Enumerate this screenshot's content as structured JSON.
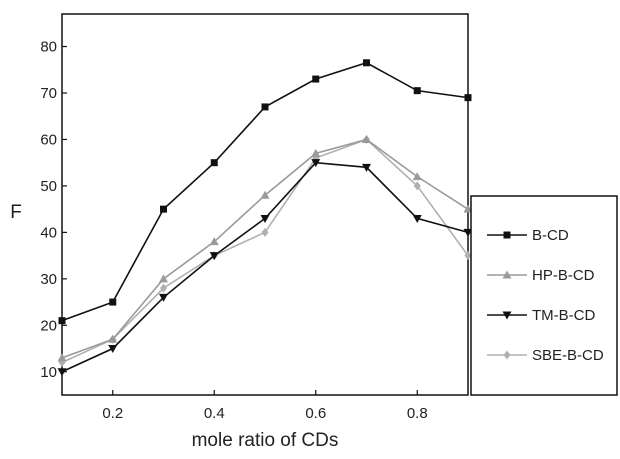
{
  "chart_data": {
    "type": "line",
    "title": "",
    "xlabel": "mole ratio of CDs",
    "ylabel": "F",
    "xlim": [
      0.1,
      0.9
    ],
    "ylim": [
      5,
      87
    ],
    "x": [
      0.1,
      0.2,
      0.3,
      0.4,
      0.5,
      0.6,
      0.7,
      0.8,
      0.9
    ],
    "x_ticks": [
      "0.2",
      "0.4",
      "0.6",
      "0.8"
    ],
    "y_ticks": [
      "10",
      "20",
      "30",
      "40",
      "50",
      "60",
      "70",
      "80"
    ],
    "legend_position": "right",
    "grid": false,
    "series": [
      {
        "name": "B-CD",
        "marker": "square",
        "color": "#111111",
        "values": [
          21,
          25,
          45,
          55,
          67,
          73,
          76.5,
          70.5,
          69
        ]
      },
      {
        "name": "HP-B-CD",
        "marker": "triangle-up",
        "color": "#9a9a9a",
        "values": [
          13,
          17,
          30,
          38,
          48,
          57,
          60,
          52,
          45
        ]
      },
      {
        "name": "TM-B-CD",
        "marker": "triangle-down",
        "color": "#111111",
        "values": [
          10,
          15,
          26,
          35,
          43,
          55,
          54,
          43,
          40
        ]
      },
      {
        "name": "SBE-B-CD",
        "marker": "diamond",
        "color": "#b0b0b0",
        "values": [
          12,
          17,
          28,
          35,
          40,
          56,
          60,
          50,
          35
        ]
      }
    ]
  }
}
